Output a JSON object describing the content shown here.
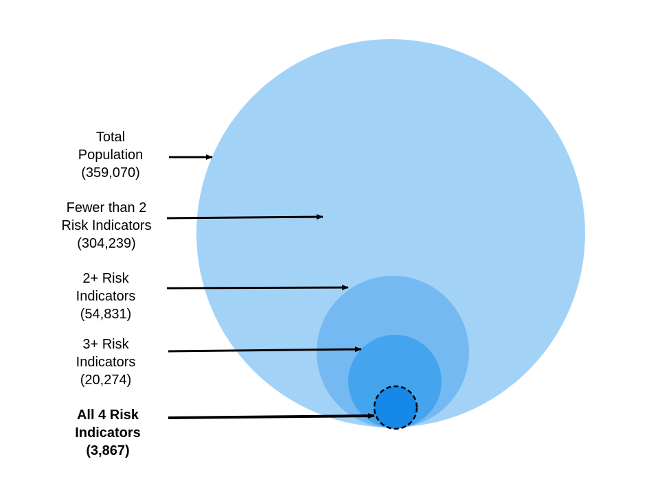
{
  "diagram": {
    "groups": [
      {
        "name": "Total Population",
        "line1": "Total",
        "line2": "Population",
        "count": "(359,070)",
        "value": 359070,
        "bold": false
      },
      {
        "name": "Fewer than 2 Risk Indicators",
        "line1": "Fewer than 2",
        "line2": "Risk Indicators",
        "count": "(304,239)",
        "value": 304239,
        "bold": false
      },
      {
        "name": "2+ Risk Indicators",
        "line1": "2+ Risk",
        "line2": "Indicators",
        "count": "(54,831)",
        "value": 54831,
        "bold": false
      },
      {
        "name": "3+ Risk Indicators",
        "line1": "3+ Risk",
        "line2": "Indicators",
        "count": "(20,274)",
        "value": 20274,
        "bold": false
      },
      {
        "name": "All 4 Risk Indicators",
        "line1": "All 4 Risk",
        "line2": "Indicators",
        "count": "(3,867)",
        "value": 3867,
        "bold": true
      }
    ],
    "colors": {
      "total": "#a3d2f7",
      "two_plus": "#74b9f2",
      "three_plus": "#45a4ee",
      "all_four": "#1689e8",
      "arrow": "#000000"
    }
  }
}
